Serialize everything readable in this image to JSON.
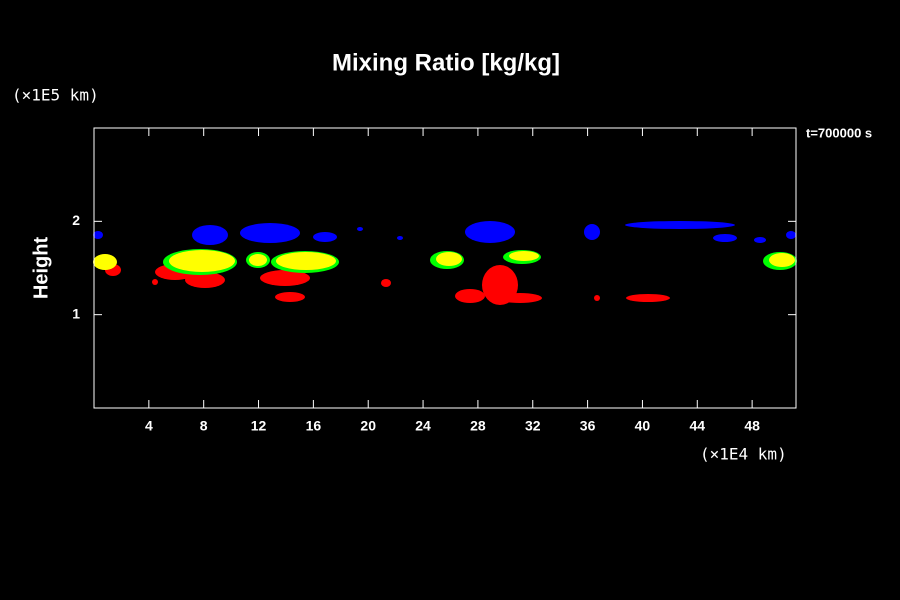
{
  "chart_data": {
    "type": "contour",
    "title": "Mixing Ratio [kg/kg]",
    "y_unit": "(×1E5 km)",
    "x_unit": "(×1E4 km)",
    "ylabel": "Height",
    "annotation": "t=700000 s",
    "xlim": [
      0,
      51.2
    ],
    "xticks": [
      4,
      8,
      12,
      16,
      20,
      24,
      28,
      32,
      36,
      40,
      44,
      48
    ],
    "ylim": [
      0,
      3
    ],
    "yticks": [
      1,
      2
    ]
  }
}
